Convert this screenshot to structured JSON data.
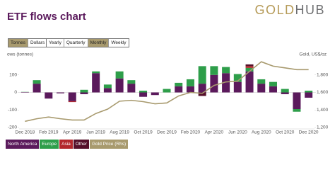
{
  "header": {
    "logo": [
      "GOLD",
      "HUB"
    ]
  },
  "controls": {
    "unit": {
      "options": [
        "Tonnes",
        "Dollars"
      ],
      "selected": 0
    },
    "period": {
      "options": [
        "Yearly",
        "Quarterly",
        "Monthly",
        "Weekly"
      ],
      "selected": 2
    }
  },
  "chart_data": {
    "type": "bar",
    "stacked": true,
    "title": "ETF flows chart",
    "y_label": "ows (tonnes)",
    "y2_label": "Gold, US$/oz",
    "categories": [
      "Dec 2018",
      null,
      "Feb 2019",
      null,
      "Apr 2019",
      null,
      "Jun 2019",
      null,
      "Aug 2019",
      null,
      "Oct 2019",
      null,
      "Dec 2019",
      null,
      "Feb 2020",
      null,
      "Apr 2020",
      null,
      "Jun 2020",
      null,
      "Aug 2020",
      null,
      "Oct 2020",
      null,
      "Dec 2020"
    ],
    "ylim": [
      -200,
      200
    ],
    "yticks": [
      -200,
      -100,
      0,
      100
    ],
    "y2lim": [
      1200,
      2000
    ],
    "y2ticks": [
      {
        "value": 1200,
        "label": "1,200"
      },
      {
        "value": 1400,
        "label": "1,400"
      },
      {
        "value": 1600,
        "label": "1,600"
      },
      {
        "value": 1800,
        "label": "1,800"
      }
    ],
    "series": [
      {
        "name": "North America",
        "color": "#5b1a5c",
        "values": [
          2,
          50,
          -35,
          -5,
          -50,
          -10,
          110,
          25,
          80,
          50,
          -25,
          -15,
          0,
          35,
          35,
          50,
          100,
          110,
          60,
          120,
          50,
          35,
          -10,
          -95,
          -30
        ]
      },
      {
        "name": "Europe",
        "color": "#2e9e4a",
        "values": [
          1,
          20,
          0,
          0,
          0,
          15,
          10,
          20,
          40,
          20,
          10,
          0,
          20,
          20,
          40,
          100,
          50,
          35,
          45,
          20,
          25,
          25,
          20,
          -15,
          10
        ]
      },
      {
        "name": "Asia",
        "color": "#b3282d",
        "values": [
          0,
          0,
          0,
          0,
          -5,
          0,
          0,
          0,
          0,
          0,
          0,
          0,
          0,
          0,
          0,
          0,
          0,
          0,
          0,
          10,
          0,
          0,
          0,
          0,
          0
        ]
      },
      {
        "name": "Other",
        "color": "#55102a",
        "values": [
          0,
          0,
          0,
          0,
          0,
          0,
          0,
          0,
          0,
          0,
          0,
          0,
          0,
          0,
          0,
          -20,
          0,
          0,
          0,
          10,
          0,
          0,
          0,
          0,
          0
        ]
      },
      {
        "name": "Gold Price (Rhs)",
        "type": "line",
        "axis": "y2",
        "color": "#a89a6e",
        "values": [
          1270,
          1300,
          1320,
          1300,
          1285,
          1285,
          1360,
          1410,
          1500,
          1510,
          1495,
          1470,
          1480,
          1560,
          1600,
          1590,
          1680,
          1720,
          1730,
          1840,
          1950,
          1900,
          1880,
          1860,
          1860
        ]
      }
    ],
    "legend": "bottom-left"
  }
}
